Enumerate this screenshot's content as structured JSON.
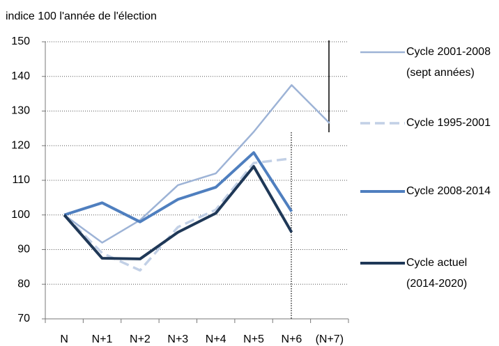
{
  "chart_data": {
    "type": "line",
    "title": "indice 100 l'année de l'élection",
    "categories": [
      "N",
      "N+1",
      "N+2",
      "N+3",
      "N+4",
      "N+5",
      "N+6",
      "(N+7)"
    ],
    "series": [
      {
        "name": "Cycle 2001-2008 (sept années)",
        "color": "#9db3d6",
        "dash": false,
        "width": 2.5,
        "values": [
          100,
          92,
          98.5,
          108.6,
          112,
          124,
          137.5,
          126.5
        ]
      },
      {
        "name": "Cycle 1995-2001",
        "color": "#c2d0e6",
        "dash": true,
        "width": 3.5,
        "values": [
          100,
          89,
          84,
          96.5,
          101.5,
          115,
          116.3,
          null
        ]
      },
      {
        "name": "Cycle 2008-2014",
        "color": "#4f7fbf",
        "dash": false,
        "width": 4,
        "values": [
          100,
          103.5,
          98,
          104.5,
          108,
          118,
          101,
          null
        ]
      },
      {
        "name": "Cycle actuel (2014-2020)",
        "color": "#1f3857",
        "dash": false,
        "width": 4,
        "values": [
          100,
          87.5,
          87.3,
          95,
          100.5,
          114,
          95,
          null
        ]
      }
    ],
    "ylim": [
      70,
      150
    ],
    "yticks": [
      70,
      80,
      90,
      100,
      110,
      120,
      130,
      140,
      150
    ],
    "grid": true
  }
}
